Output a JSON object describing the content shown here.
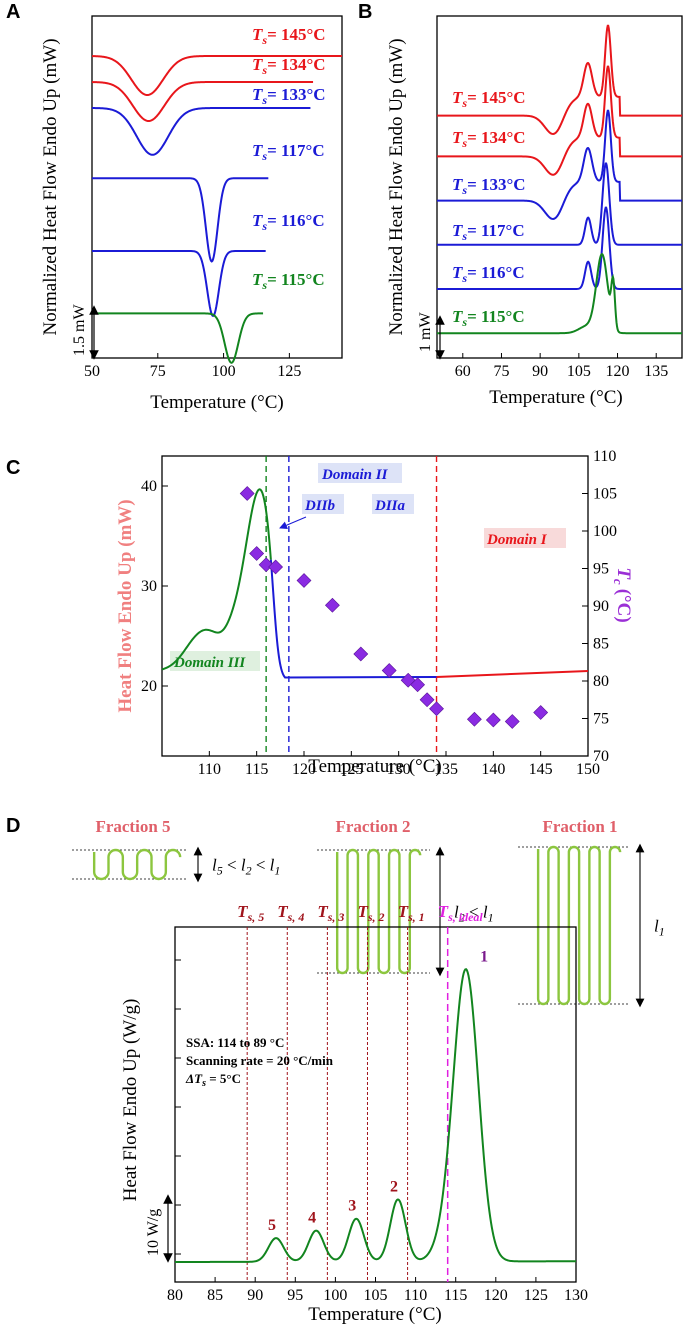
{
  "panel_labels": {
    "a": "A",
    "b": "B",
    "c": "C",
    "d": "D"
  },
  "colors": {
    "red": "#e8161b",
    "blue": "#1b1bd6",
    "green": "#12851f",
    "purple": "#9b2fd6",
    "pinkaxis": "#f08080",
    "darkred": "#a0141c",
    "magenta": "#e020e0",
    "lamella": "#8cc63f",
    "fraction": "#e0606a",
    "domainIII_bg": "#dff0df",
    "domainII_bg": "#dde3f7",
    "domainI_bg": "#f8dada"
  },
  "chart_data": [
    {
      "id": "A",
      "type": "line",
      "title": "",
      "xlabel": "Temperature (°C)",
      "ylabel": "Normalized Heat Flow Endo Up (mW)",
      "xlim": [
        50,
        145
      ],
      "xticks": [
        "50",
        "75",
        "100",
        "125"
      ],
      "scalebar": "1.5 mW",
      "series": [
        {
          "name": "145°C",
          "label_main": "T",
          "label_sub": "s",
          "label_rest": "= 145°C",
          "color": "red",
          "x_end": 145,
          "dip_x": 71,
          "dip_width": 6,
          "dip_depth_mw": 1.5,
          "offset_mw": 11.5
        },
        {
          "name": "134°C",
          "label_main": "T",
          "label_sub": "s",
          "label_rest": "= 134°C",
          "color": "red",
          "x_end": 134,
          "dip_x": 71.5,
          "dip_width": 6,
          "dip_depth_mw": 1.5,
          "offset_mw": 10.5
        },
        {
          "name": "133°C",
          "label_main": "T",
          "label_sub": "s",
          "label_rest": "= 133°C",
          "color": "blue",
          "x_end": 133,
          "dip_x": 73,
          "dip_width": 6,
          "dip_depth_mw": 1.8,
          "offset_mw": 9.5
        },
        {
          "name": "117°C",
          "label_main": "T",
          "label_sub": "s",
          "label_rest": "= 117°C",
          "color": "blue",
          "x_end": 117,
          "dip_x": 95.5,
          "dip_width": 2.2,
          "dip_depth_mw": 3.2,
          "offset_mw": 6.8
        },
        {
          "name": "116°C",
          "label_main": "T",
          "label_sub": "s",
          "label_rest": "= 116°C",
          "color": "blue",
          "x_end": 116,
          "dip_x": 96,
          "dip_width": 2.2,
          "dip_depth_mw": 2.5,
          "offset_mw": 4.0
        },
        {
          "name": "115°C",
          "label_main": "T",
          "label_sub": "s",
          "label_rest": "= 115°C",
          "color": "green",
          "x_end": 115,
          "dip_x": 103,
          "dip_width": 2.6,
          "dip_depth_mw": 1.9,
          "offset_mw": 1.6
        }
      ]
    },
    {
      "id": "B",
      "type": "line",
      "title": "",
      "xlabel": "Temperature (°C)",
      "ylabel": "Normalized Heat Flow Endo Up (mW)",
      "xlim": [
        50,
        145
      ],
      "xticks": [
        "60",
        "75",
        "90",
        "105",
        "120",
        "135"
      ],
      "scalebar": "1 mW",
      "series": [
        {
          "name": "145°C",
          "label_main": "T",
          "label_sub": "s",
          "label_rest": "= 145°C",
          "color": "red",
          "offset_mw": 13.2,
          "valley": true
        },
        {
          "name": "134°C",
          "label_main": "T",
          "label_sub": "s",
          "label_rest": "= 134°C",
          "color": "red",
          "offset_mw": 10.8,
          "valley": true
        },
        {
          "name": "133°C",
          "label_main": "T",
          "label_sub": "s",
          "label_rest": "= 133°C",
          "color": "blue",
          "offset_mw": 8.2,
          "valley": true
        },
        {
          "name": "117°C",
          "label_main": "T",
          "label_sub": "s",
          "label_rest": "= 117°C",
          "color": "blue",
          "offset_mw": 5.6,
          "valley": false
        },
        {
          "name": "116°C",
          "label_main": "T",
          "label_sub": "s",
          "label_rest": "= 116°C",
          "color": "blue",
          "offset_mw": 3.0,
          "valley": false
        },
        {
          "name": "115°C",
          "label_main": "T",
          "label_sub": "s",
          "label_rest": "= 115°C",
          "color": "green",
          "offset_mw": 0.4,
          "valley": false,
          "double_peak": true
        }
      ]
    },
    {
      "id": "C",
      "type": "line+scatter",
      "xlabel": "Temperature (°C)",
      "ylabel_left": "Heat Flow Endo Up (mW)",
      "ylabel_right_main": "T",
      "ylabel_right_sub": "c",
      "ylabel_right_rest": "(°C)",
      "xlim": [
        105,
        150
      ],
      "xticks": [
        "110",
        "115",
        "120",
        "125",
        "130",
        "135",
        "140",
        "145",
        "150"
      ],
      "ylim_left": [
        13,
        43
      ],
      "yticks_left": [
        "20",
        "30",
        "40"
      ],
      "ylim_right": [
        70,
        110
      ],
      "yticks_right": [
        "70",
        "75",
        "80",
        "85",
        "90",
        "95",
        "100",
        "105",
        "110"
      ],
      "vlines": [
        {
          "x": 116,
          "color": "green"
        },
        {
          "x": 118.4,
          "color": "blue"
        },
        {
          "x": 134,
          "color": "red"
        }
      ],
      "domains": {
        "domain_iii": "Domain III",
        "domain_ii": "Domain II",
        "diib": "DIIb",
        "diia": "DIIa",
        "domain_i": "Domain I"
      },
      "tc_points": {
        "x": [
          114,
          115,
          116,
          117,
          120,
          123,
          126,
          129,
          131,
          132,
          133,
          134,
          138,
          140,
          142,
          145
        ],
        "y": [
          105,
          97,
          95.5,
          95.2,
          93.4,
          90.1,
          83.6,
          81.4,
          80.1,
          79.5,
          77.5,
          76.3,
          74.9,
          74.8,
          74.6,
          75.8
        ]
      }
    },
    {
      "id": "D",
      "type": "line",
      "xlabel": "Temperature (°C)",
      "ylabel": "Heat Flow Endo Up (W/g)",
      "xlim": [
        80,
        130
      ],
      "xticks": [
        "80",
        "85",
        "90",
        "95",
        "100",
        "105",
        "110",
        "115",
        "120",
        "125",
        "130"
      ],
      "scalebar": "10 W/g",
      "annotation_lines": [
        "SSA: 114 to 89 °C",
        "Scanning rate = 20 °C/min"
      ],
      "delta_ts": {
        "prefix": "ΔT",
        "sub": "s",
        "rest": " = 5°C"
      },
      "ts_lines": [
        {
          "x": 89,
          "main": "T",
          "sub": "s, 5",
          "color": "darkred"
        },
        {
          "x": 94,
          "main": "T",
          "sub": "s, 4",
          "color": "darkred"
        },
        {
          "x": 99,
          "main": "T",
          "sub": "s, 3",
          "color": "darkred"
        },
        {
          "x": 104,
          "main": "T",
          "sub": "s, 2",
          "color": "darkred"
        },
        {
          "x": 109,
          "main": "T",
          "sub": "s, 1",
          "color": "darkred"
        },
        {
          "x": 114,
          "main": "T",
          "sub": "s, ideal",
          "color": "magenta"
        }
      ],
      "peaks": [
        {
          "label": "5",
          "x": 92.6,
          "h": 1.6
        },
        {
          "label": "4",
          "x": 97.6,
          "h": 2.1
        },
        {
          "label": "3",
          "x": 102.6,
          "h": 2.9
        },
        {
          "label": "2",
          "x": 107.8,
          "h": 4.2
        },
        {
          "label": "1",
          "x": 116.3,
          "h": 19.5
        }
      ]
    }
  ],
  "fractions": [
    {
      "title": "Fraction 5",
      "relation": {
        "parts": [
          "l",
          "5",
          " < ",
          "l",
          "2",
          " < ",
          "l",
          "1"
        ]
      }
    },
    {
      "title": "Fraction 2",
      "relation": {
        "parts": [
          "l",
          "2",
          " < ",
          "l",
          "1"
        ]
      }
    },
    {
      "title": "Fraction 1",
      "relation": {
        "parts": [
          "l",
          "1"
        ]
      }
    }
  ]
}
